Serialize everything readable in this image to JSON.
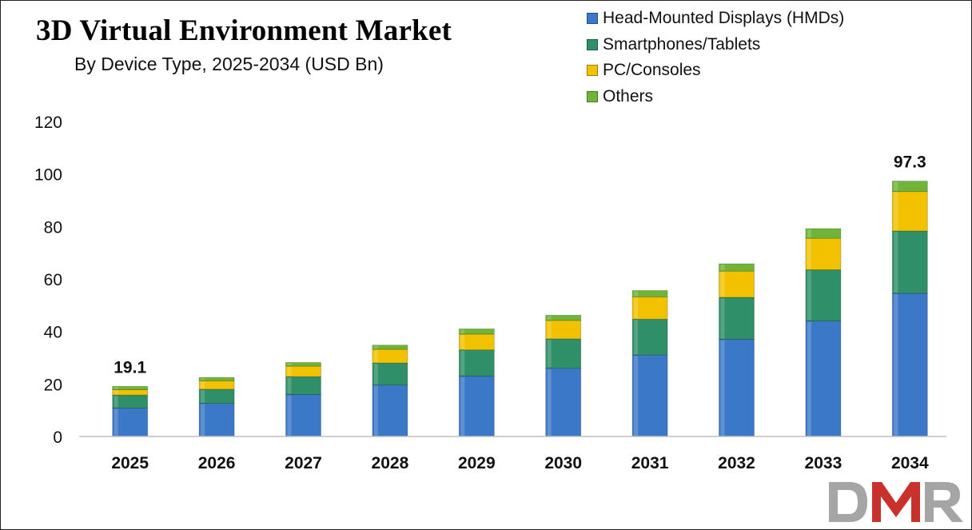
{
  "title": "3D Virtual Environment Market",
  "subtitle": "By Device Type, 2025-2034 (USD Bn)",
  "logo_text": "DMR",
  "chart_data": {
    "type": "bar",
    "stacked": true,
    "categories": [
      "2025",
      "2026",
      "2027",
      "2028",
      "2029",
      "2030",
      "2031",
      "2032",
      "2033",
      "2034"
    ],
    "series": [
      {
        "name": "Head-Mounted Displays (HMDs)",
        "color": "#3b78c8",
        "values": [
          10.8,
          12.6,
          16.0,
          19.6,
          23.0,
          26.0,
          31.0,
          37.0,
          44.0,
          54.5
        ]
      },
      {
        "name": "Smartphones/Tablets",
        "color": "#2f8f68",
        "values": [
          5.0,
          5.4,
          6.8,
          8.4,
          10.0,
          11.2,
          13.7,
          16.0,
          19.5,
          23.8
        ]
      },
      {
        "name": "PC/Consoles",
        "color": "#f2c200",
        "values": [
          2.0,
          3.2,
          4.0,
          5.2,
          6.0,
          7.0,
          8.5,
          10.0,
          12.0,
          15.0
        ]
      },
      {
        "name": "Others",
        "color": "#6fb53a",
        "values": [
          1.3,
          1.3,
          1.4,
          1.6,
          2.0,
          2.0,
          2.4,
          2.8,
          3.7,
          4.0
        ]
      }
    ],
    "data_labels": [
      {
        "category": "2025",
        "text": "19.1"
      },
      {
        "category": "2034",
        "text": "97.3"
      }
    ],
    "ylim": [
      0,
      120
    ],
    "y_ticks": [
      "0",
      "20",
      "40",
      "60",
      "80",
      "100",
      "120"
    ],
    "grid": false,
    "legend_position": "top-right"
  }
}
